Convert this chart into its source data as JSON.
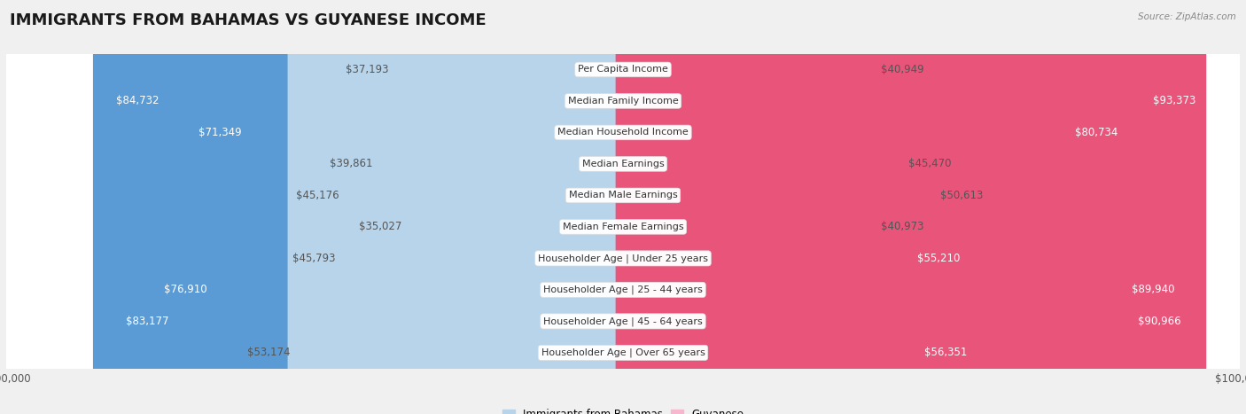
{
  "title": "IMMIGRANTS FROM BAHAMAS VS GUYANESE INCOME",
  "source": "Source: ZipAtlas.com",
  "categories": [
    "Per Capita Income",
    "Median Family Income",
    "Median Household Income",
    "Median Earnings",
    "Median Male Earnings",
    "Median Female Earnings",
    "Householder Age | Under 25 years",
    "Householder Age | 25 - 44 years",
    "Householder Age | 45 - 64 years",
    "Householder Age | Over 65 years"
  ],
  "bahamas_values": [
    37193,
    84732,
    71349,
    39861,
    45176,
    35027,
    45793,
    76910,
    83177,
    53174
  ],
  "guyanese_values": [
    40949,
    93373,
    80734,
    45470,
    50613,
    40973,
    55210,
    89940,
    90966,
    56351
  ],
  "bahamas_labels": [
    "$37,193",
    "$84,732",
    "$71,349",
    "$39,861",
    "$45,176",
    "$35,027",
    "$45,793",
    "$76,910",
    "$83,177",
    "$53,174"
  ],
  "guyanese_labels": [
    "$40,949",
    "$93,373",
    "$80,734",
    "$45,470",
    "$50,613",
    "$40,973",
    "$55,210",
    "$89,940",
    "$90,966",
    "$56,351"
  ],
  "max_value": 100000,
  "bahamas_light": "#b8d4ea",
  "bahamas_dark": "#5b9bd5",
  "guyanese_light": "#f7b8cf",
  "guyanese_dark": "#e8547a",
  "threshold_pct": 0.55,
  "bg_color": "#f0f0f0",
  "row_bg": "#ffffff",
  "row_border": "#d8d8d8",
  "title_fontsize": 13,
  "label_fontsize": 8.5,
  "category_fontsize": 8,
  "axis_fontsize": 8.5
}
